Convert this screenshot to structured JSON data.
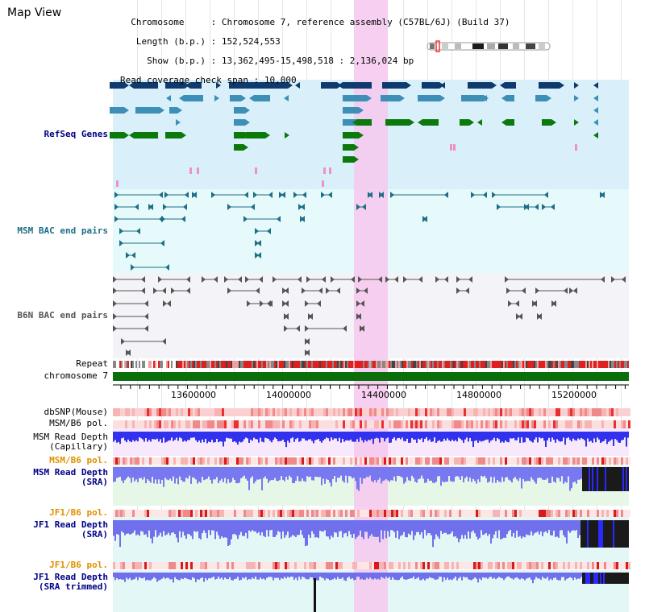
{
  "page_title": "Map View",
  "info": {
    "chromosome_key": "Chromosome",
    "chromosome_value": "Chromosome 7, reference assembly (C57BL/6J) (Build 37)",
    "length_key": "Length (b.p.)",
    "length_value": "152,524,553",
    "show_key": "Show (b.p.)",
    "show_value": "13,362,495-15,498,518 : 2,136,024 bp",
    "coverage_key": "Read coverage check span",
    "coverage_value": "10,000"
  },
  "tracks": {
    "refseq": "RefSeq Genes",
    "msm_bac": "MSM BAC end pairs",
    "b6n_bac": "B6N BAC end pairs",
    "repeat": "Repeat",
    "chromosome": "chromosome 7",
    "dbsnp": "dbSNP(Mouse)",
    "msm_pol": "MSM/B6 pol.",
    "msm_depth_cap_1": "MSM Read Depth",
    "msm_depth_cap_2": "(Capillary)",
    "msm_pol_2": "MSM/B6 pol.",
    "msm_depth_sra_1": "MSM Read Depth",
    "msm_depth_sra_2": "(SRA)",
    "jf1_pol": "JF1/B6 pol.",
    "jf1_depth_sra_1": "JF1 Read Depth",
    "jf1_depth_sra_2": "(SRA)",
    "jf1_pol_2": "JF1/B6 pol.",
    "jf1_depth_trim_1": "JF1 Read Depth",
    "jf1_depth_trim_2": "(SRA trimmed)"
  },
  "axis": {
    "ticks": [
      "13600000",
      "14000000",
      "14400000",
      "14800000",
      "15200000"
    ]
  },
  "colors": {
    "gene_navy": "#0f3a6e",
    "gene_teal": "#3d8fb6",
    "gene_green": "#0b7a0b",
    "bac_teal": "#1e6e86",
    "bac_gray": "#555555",
    "highlight": "#f6c8ee",
    "depth_blue": "#3a3aff",
    "label_navy": "#00008b",
    "label_orange": "#e09000"
  }
}
